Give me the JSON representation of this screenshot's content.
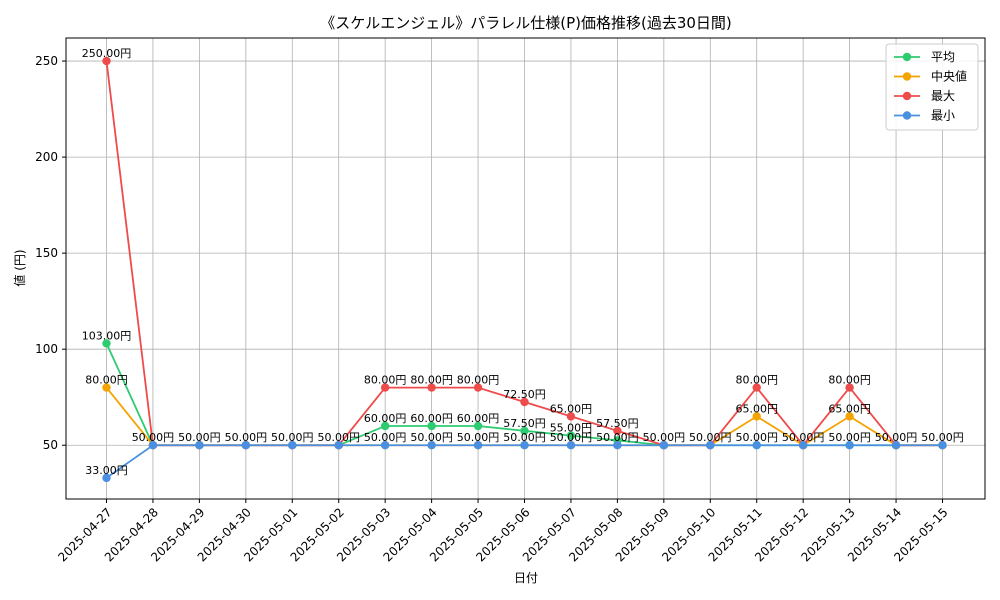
{
  "chart_data": {
    "type": "line",
    "title": "《スケルエンジェル》パラレル仕様(P)価格推移(過去30日間)",
    "xlabel": "日付",
    "ylabel": "値 (円)",
    "ylim": [
      22,
      262
    ],
    "yticks": [
      50,
      100,
      150,
      200,
      250
    ],
    "grid": true,
    "legend_position": "top-right",
    "categories": [
      "2025-04-27",
      "2025-04-28",
      "2025-04-29",
      "2025-04-30",
      "2025-05-01",
      "2025-05-02",
      "2025-05-03",
      "2025-05-04",
      "2025-05-05",
      "2025-05-06",
      "2025-05-07",
      "2025-05-08",
      "2025-05-09",
      "2025-05-10",
      "2025-05-11",
      "2025-05-12",
      "2025-05-13",
      "2025-05-14",
      "2025-05-15"
    ],
    "series": [
      {
        "name": "平均",
        "color": "#2ecc71",
        "values": [
          103,
          50,
          50,
          50,
          50,
          50,
          60,
          60,
          60,
          57.5,
          55,
          52.5,
          50,
          50,
          50,
          50,
          50,
          50,
          50
        ],
        "labels": [
          "103.00円",
          "",
          "",
          "",
          "",
          "",
          "60.00円",
          "60.00円",
          "60.00円",
          "57.50円",
          "55.00円",
          "",
          "",
          "",
          "",
          "",
          "",
          "",
          ""
        ]
      },
      {
        "name": "中央値",
        "color": "#f5a300",
        "values": [
          80,
          50,
          50,
          50,
          50,
          50,
          50,
          50,
          50,
          50,
          50,
          50,
          50,
          50,
          65,
          50,
          65,
          50,
          50
        ],
        "labels": [
          "80.00円",
          "",
          "",
          "",
          "",
          "",
          "",
          "",
          "",
          "",
          "",
          "",
          "",
          "",
          "65.00円",
          "",
          "65.00円",
          "",
          ""
        ]
      },
      {
        "name": "最大",
        "color": "#ef4b4b",
        "values": [
          250,
          50,
          50,
          50,
          50,
          50,
          80,
          80,
          80,
          72.5,
          65,
          57.5,
          50,
          50,
          80,
          50,
          80,
          50,
          50
        ],
        "labels": [
          "250.00円",
          "",
          "",
          "",
          "",
          "",
          "80.00円",
          "80.00円",
          "80.00円",
          "72.50円",
          "65.00円",
          "57.50円",
          "",
          "",
          "80.00円",
          "",
          "80.00円",
          "",
          ""
        ]
      },
      {
        "name": "最小",
        "color": "#4a90e2",
        "values": [
          33,
          50,
          50,
          50,
          50,
          50,
          50,
          50,
          50,
          50,
          50,
          50,
          50,
          50,
          50,
          50,
          50,
          50,
          50
        ],
        "labels": [
          "33.00円",
          "50.00円",
          "50.00円",
          "50.00円",
          "50.00円",
          "50.00円",
          "50.00円",
          "50.00円",
          "50.00円",
          "50.00円",
          "50.00円",
          "50.00円",
          "50.00円",
          "50.00円",
          "50.00円",
          "50.00円",
          "50.00円",
          "50.00円",
          "50.00円"
        ]
      }
    ]
  }
}
